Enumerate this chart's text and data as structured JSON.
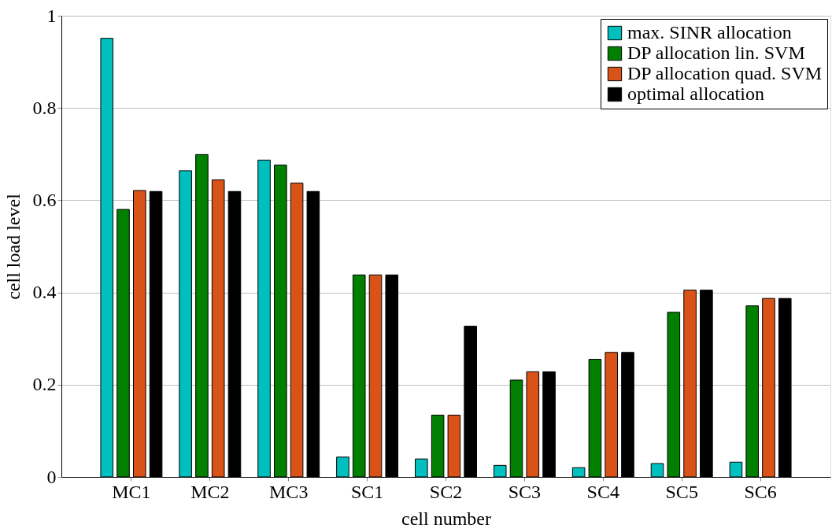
{
  "chart_data": {
    "type": "bar",
    "xlabel": "cell number",
    "ylabel": "cell load level",
    "categories": [
      "MC1",
      "MC2",
      "MC3",
      "SC1",
      "SC2",
      "SC3",
      "SC4",
      "SC5",
      "SC6"
    ],
    "series": [
      {
        "name": "max. SINR allocation",
        "color": "#00bfbf",
        "values": [
          0.951,
          0.664,
          0.687,
          0.043,
          0.039,
          0.025,
          0.02,
          0.029,
          0.032
        ]
      },
      {
        "name": "DP allocation lin. SVM",
        "color": "#007f00",
        "values": [
          0.58,
          0.699,
          0.676,
          0.438,
          0.134,
          0.21,
          0.255,
          0.357,
          0.371
        ]
      },
      {
        "name": "DP allocation quad. SVM",
        "color": "#d95319",
        "values": [
          0.621,
          0.644,
          0.637,
          0.438,
          0.134,
          0.228,
          0.27,
          0.405,
          0.387
        ]
      },
      {
        "name": "optimal allocation",
        "color": "#000000",
        "values": [
          0.619,
          0.619,
          0.619,
          0.438,
          0.327,
          0.228,
          0.27,
          0.405,
          0.387
        ]
      }
    ],
    "ylim": [
      0,
      1
    ],
    "yticks": [
      0,
      0.2,
      0.4,
      0.6,
      0.8,
      1
    ],
    "grid": "y",
    "legend": "top right"
  }
}
